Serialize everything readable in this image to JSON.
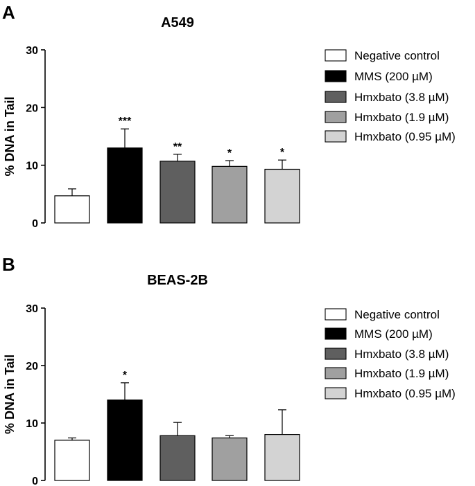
{
  "chart_data": [
    {
      "panel": "A",
      "type": "bar",
      "title": "A549",
      "xlabel": "",
      "ylabel": "% DNA in Tail",
      "ylim": [
        0,
        30
      ],
      "yticks": [
        0,
        10,
        20,
        30
      ],
      "legend_position": "right",
      "categories": [
        "Negative control",
        "MMS (200 µM)",
        "Hmxbato (3.8 µM)",
        "Hmxbato (1.9 µM)",
        "Hmxbato (0.95 µM)"
      ],
      "colors": [
        "#ffffff",
        "#000000",
        "#5f5f5f",
        "#a0a0a0",
        "#d3d3d3"
      ],
      "values": [
        4.7,
        13.0,
        10.7,
        9.8,
        9.3
      ],
      "errors": [
        1.2,
        3.3,
        1.2,
        1.0,
        1.6
      ],
      "significance": [
        "",
        "***",
        "**",
        "*",
        "*"
      ]
    },
    {
      "panel": "B",
      "type": "bar",
      "title": "BEAS-2B",
      "xlabel": "",
      "ylabel": "% DNA in Tail",
      "ylim": [
        0,
        30
      ],
      "yticks": [
        0,
        10,
        20,
        30
      ],
      "legend_position": "right",
      "categories": [
        "Negative control",
        "MMS (200 µM)",
        "Hmxbato (3.8 µM)",
        "Hmxbato (1.9 µM)",
        "Hmxbato (0.95 µM)"
      ],
      "colors": [
        "#ffffff",
        "#000000",
        "#5f5f5f",
        "#a0a0a0",
        "#d3d3d3"
      ],
      "values": [
        7.0,
        14.0,
        7.8,
        7.4,
        8.0
      ],
      "errors": [
        0.4,
        3.0,
        2.3,
        0.4,
        4.3
      ],
      "significance": [
        "",
        "*",
        "",
        "",
        ""
      ]
    }
  ]
}
